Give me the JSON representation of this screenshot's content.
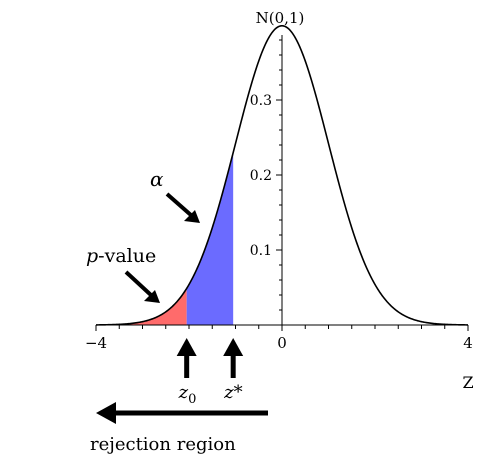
{
  "chart_data": {
    "type": "area",
    "title": "N(0,1)",
    "xlabel": "Z",
    "ylabel": "",
    "xlim": [
      -4,
      4
    ],
    "ylim": [
      0,
      0.4
    ],
    "x_ticks": [
      -4,
      0,
      4
    ],
    "x_tick_labels": [
      "−4",
      "0",
      "4"
    ],
    "y_ticks": [
      0.1,
      0.2,
      0.3
    ],
    "y_tick_labels": [
      "0.1",
      "0.2",
      "0.3"
    ],
    "grid": false,
    "series": [
      {
        "kind": "curve",
        "function": "standard normal density",
        "color": "#000000"
      }
    ],
    "shaded_regions": [
      {
        "from": -4,
        "to": -2.05,
        "color": "#ff6b6b"
      },
      {
        "from": -2.05,
        "to": -1.05,
        "color": "#6b6bff"
      }
    ],
    "markers": {
      "z0": {
        "x": -2.05,
        "label_main": "z",
        "label_sub": "0"
      },
      "zstar": {
        "x": -1.05,
        "label": "z*"
      }
    },
    "annotations": {
      "alpha": {
        "text": "α",
        "points_to_x": -1.75
      },
      "p_value": {
        "text_italic": "p",
        "text_rest": "-value",
        "points_to_x": -2.65
      },
      "rejection_region": {
        "text": "rejection region",
        "direction": "left"
      }
    }
  }
}
